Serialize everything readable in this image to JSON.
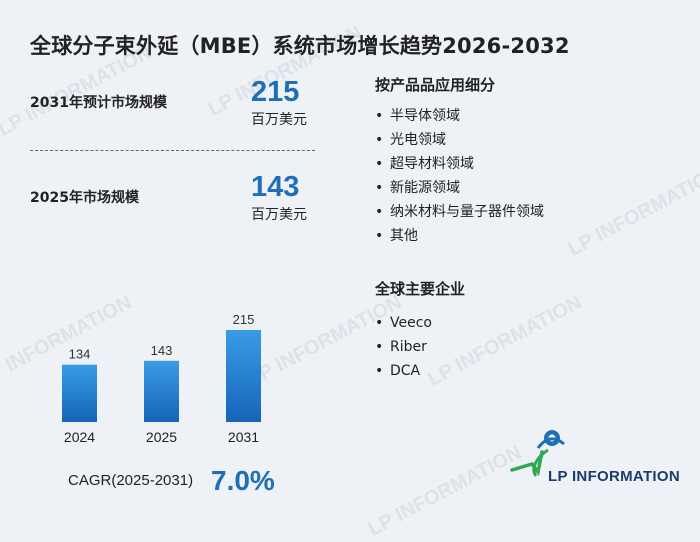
{
  "title": "全球分子束外延（MBE）系统市场增长趋势2026-2032",
  "stats": {
    "forecast_label": "2031年预计市场规模",
    "forecast_value": "215",
    "forecast_unit": "百万美元",
    "current_label": "2025年市场规模",
    "current_value": "143",
    "current_unit": "百万美元"
  },
  "cagr": {
    "label": "CAGR(2025-2031)",
    "value": "7.0%"
  },
  "applications": {
    "title": "按产品品应用细分",
    "items": [
      "半导体领域",
      "光电领域",
      "超导材料领域",
      "新能源领域",
      "纳米材料与量子器件领域",
      "其他"
    ]
  },
  "companies": {
    "title": "全球主要企业",
    "items": [
      "Veeco",
      "Riber",
      "DCA"
    ]
  },
  "bullet_char": "•",
  "logo": {
    "text": "LP INFORMATION"
  },
  "watermark": "LP INFORMATION",
  "colors": {
    "accent": "#1f6fb8",
    "bar_top": "#3a9be6",
    "bar_bottom": "#1565b8"
  },
  "chart_data": {
    "type": "bar",
    "categories": [
      "2024",
      "2025",
      "2031"
    ],
    "values": [
      134,
      143,
      215
    ],
    "ylim": [
      0,
      230
    ],
    "data_labels": true,
    "grid": false
  }
}
